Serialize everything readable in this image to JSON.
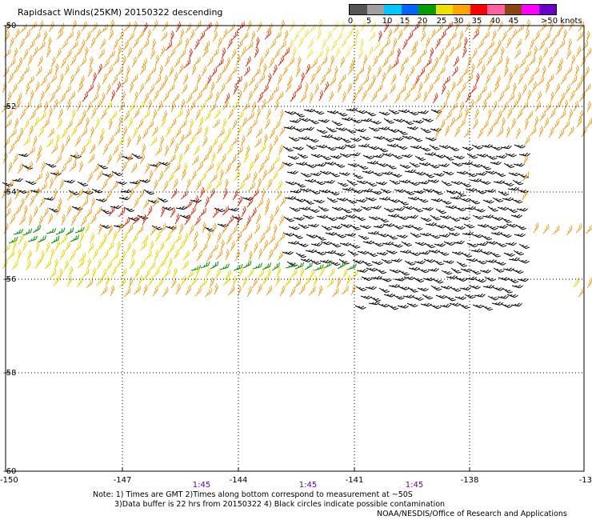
{
  "title": "Rapidsact Winds(25KM) 20150322 descending",
  "legend": {
    "colors": [
      "#555555",
      "#a0a0a0",
      "#00c8ff",
      "#0064ff",
      "#00a000",
      "#f0e000",
      "#ffa500",
      "#ff0000",
      "#ff60a0",
      "#8b4513",
      "#ff00ff",
      "#6a00c8"
    ],
    "labels": [
      "0",
      "5",
      "10",
      "15",
      "20",
      "25",
      "30",
      "35",
      "40",
      "45",
      ">50 knots"
    ]
  },
  "axes": {
    "lat_labels": [
      "-50",
      "-52",
      "-54",
      "-56",
      "-58",
      "-60"
    ],
    "lon_labels": [
      "-150",
      "-147",
      "-144",
      "-141",
      "-138",
      "-13"
    ],
    "time_labels": [
      "1:45",
      "1:45",
      "1:45"
    ]
  },
  "notes": {
    "line1": "Note: 1) Times are GMT 2)Times along bottom correspond to measurement at ~50S",
    "line2": "3)Data buffer is 22 hrs from 20150322 4) Black circles indicate possible contamination",
    "line3": "NOAA/NESDIS/Office of Research and Applications"
  }
}
